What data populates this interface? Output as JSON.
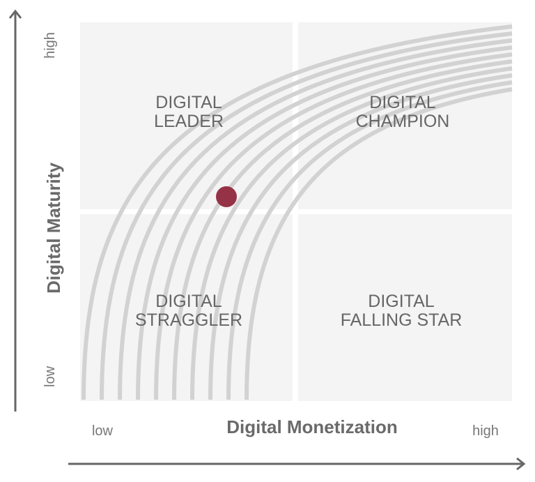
{
  "y_axis": {
    "title": "Digital Maturity",
    "low": "low",
    "high": "high"
  },
  "x_axis": {
    "title": "Digital Monetization",
    "low": "low",
    "high": "high"
  },
  "quadrants": [
    {
      "lines": [
        "DIGITAL",
        "LEADER"
      ]
    },
    {
      "lines": [
        "DIGITAL",
        "CHAMPION"
      ]
    },
    {
      "lines": [
        "DIGITAL",
        "STRAGGLER"
      ]
    },
    {
      "lines": [
        "DIGITAL",
        "FALLING STAR"
      ]
    }
  ]
}
